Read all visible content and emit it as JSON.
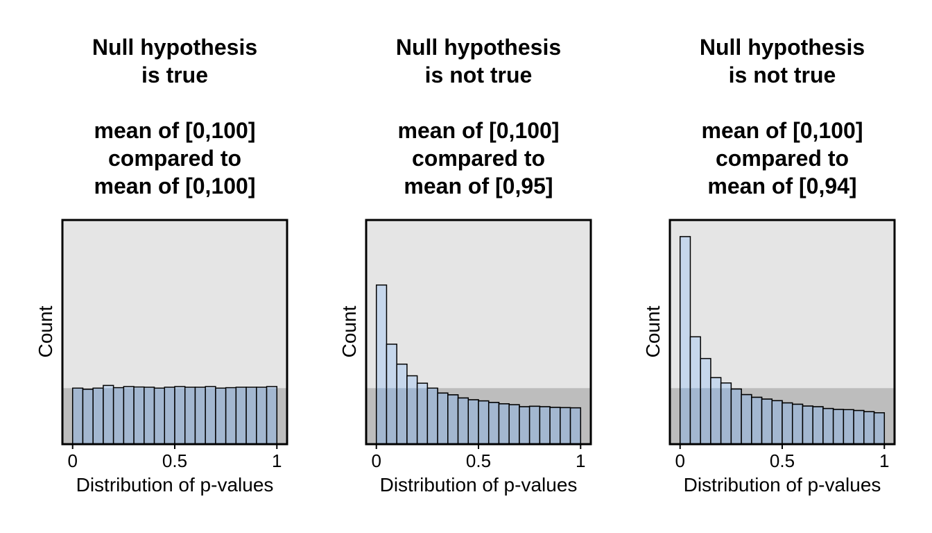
{
  "chart_data": [
    {
      "type": "bar",
      "title_lines": [
        "Null hypothesis",
        "is true",
        "",
        "mean of [0,100]",
        "compared to",
        "mean of [0,100]"
      ],
      "xlabel": "Distribution of p-values",
      "ylabel": "Count",
      "xlim": [
        -0.05,
        1.05
      ],
      "xticks": [
        0,
        0.5,
        1
      ],
      "xtick_labels": [
        "0",
        "0.5",
        "1"
      ],
      "bin_width": 0.05,
      "ylim": [
        0,
        1000
      ],
      "reference_level": 250,
      "values": [
        250,
        245,
        250,
        262,
        252,
        257,
        255,
        254,
        250,
        254,
        257,
        254,
        254,
        257,
        250,
        252,
        254,
        254,
        254,
        257
      ],
      "colors": {
        "panel_bg": "#e5e5e5",
        "reference_band": "#bdbdbd",
        "bar_fill": "#a3b7d0",
        "bar_fill_above": "#c6d7ec",
        "bar_stroke": "#000000"
      }
    },
    {
      "type": "bar",
      "title_lines": [
        "Null hypothesis",
        "is not true",
        "",
        "mean of [0,100]",
        "compared to",
        "mean of [0,95]"
      ],
      "xlabel": "Distribution of p-values",
      "ylabel": "Count",
      "xlim": [
        -0.05,
        1.05
      ],
      "xticks": [
        0,
        0.5,
        1
      ],
      "xtick_labels": [
        "0",
        "0.5",
        "1"
      ],
      "bin_width": 0.05,
      "ylim": [
        0,
        1000
      ],
      "reference_level": 250,
      "values": [
        710,
        446,
        357,
        305,
        272,
        250,
        228,
        220,
        206,
        198,
        193,
        186,
        180,
        176,
        167,
        169,
        167,
        164,
        163,
        162
      ],
      "colors": {
        "panel_bg": "#e5e5e5",
        "reference_band": "#bdbdbd",
        "bar_fill": "#a3b7d0",
        "bar_fill_above": "#c6d7ec",
        "bar_stroke": "#000000"
      }
    },
    {
      "type": "bar",
      "title_lines": [
        "Null hypothesis",
        "is not true",
        "",
        "mean of [0,100]",
        "compared to",
        "mean of [0,94]"
      ],
      "xlabel": "Distribution of p-values",
      "ylabel": "Count",
      "xlim": [
        -0.05,
        1.05
      ],
      "xticks": [
        0,
        0.5,
        1
      ],
      "xtick_labels": [
        "0",
        "0.5",
        "1"
      ],
      "bin_width": 0.05,
      "ylim": [
        0,
        1000
      ],
      "reference_level": 250,
      "values": [
        926,
        479,
        382,
        297,
        273,
        246,
        221,
        209,
        201,
        194,
        184,
        178,
        170,
        167,
        159,
        155,
        154,
        150,
        145,
        140
      ],
      "colors": {
        "panel_bg": "#e5e5e5",
        "reference_band": "#bdbdbd",
        "bar_fill": "#a3b7d0",
        "bar_fill_above": "#c6d7ec",
        "bar_stroke": "#000000"
      }
    }
  ]
}
